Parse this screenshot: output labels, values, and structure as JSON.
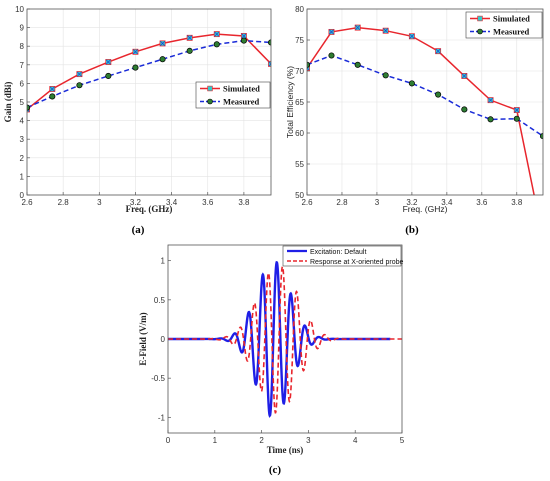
{
  "chart_data": [
    {
      "id": "a",
      "type": "line",
      "panel_label": "(a)",
      "xlabel": "Freq. (GHz)",
      "ylabel": "Gain (dBi)",
      "xlim": [
        2.6,
        3.95
      ],
      "ylim": [
        0,
        10
      ],
      "xticks": [
        2.6,
        2.8,
        3,
        3.2,
        3.4,
        3.6,
        3.8
      ],
      "yticks": [
        0,
        1,
        2,
        3,
        4,
        5,
        6,
        7,
        8,
        9,
        10
      ],
      "grid": true,
      "legend_position": "center-right",
      "series": [
        {
          "name": "Simulated",
          "color": "#e8262d",
          "line": "solid",
          "marker": "square-x",
          "marker_color": "#33cccc",
          "x": [
            2.6,
            2.74,
            2.89,
            3.05,
            3.2,
            3.35,
            3.5,
            3.65,
            3.8,
            3.95
          ],
          "y": [
            4.6,
            5.7,
            6.5,
            7.15,
            7.7,
            8.15,
            8.45,
            8.65,
            8.55,
            7.05
          ]
        },
        {
          "name": "Measured",
          "color": "#1a2bd8",
          "line": "dashed",
          "marker": "circle",
          "marker_color": "#2e7d32",
          "x": [
            2.6,
            2.74,
            2.89,
            3.05,
            3.2,
            3.35,
            3.5,
            3.65,
            3.8,
            3.95
          ],
          "y": [
            4.7,
            5.3,
            5.9,
            6.4,
            6.85,
            7.3,
            7.75,
            8.1,
            8.3,
            8.2
          ]
        }
      ]
    },
    {
      "id": "b",
      "type": "line",
      "panel_label": "(b)",
      "xlabel": "Freq. (GHz)",
      "ylabel": "Total Efficiency (%)",
      "xlim": [
        2.6,
        3.95
      ],
      "ylim": [
        50,
        80
      ],
      "xticks": [
        2.6,
        2.8,
        3,
        3.2,
        3.4,
        3.6,
        3.8
      ],
      "yticks": [
        50,
        55,
        60,
        65,
        70,
        75,
        80
      ],
      "grid": true,
      "legend_position": "top-right",
      "series": [
        {
          "name": "Simulated",
          "color": "#e8262d",
          "line": "solid",
          "marker": "square-x",
          "marker_color": "#33cccc",
          "x": [
            2.6,
            2.74,
            2.89,
            3.05,
            3.2,
            3.35,
            3.5,
            3.65,
            3.8,
            3.95
          ],
          "y": [
            70.5,
            76.3,
            77.0,
            76.5,
            75.6,
            73.2,
            69.2,
            65.3,
            63.7,
            43.0
          ]
        },
        {
          "name": "Measured",
          "color": "#1a2bd8",
          "line": "dashed",
          "marker": "circle",
          "marker_color": "#2e7d32",
          "x": [
            2.6,
            2.74,
            2.89,
            3.05,
            3.2,
            3.35,
            3.5,
            3.65,
            3.8,
            3.95
          ],
          "y": [
            71.0,
            72.5,
            71.0,
            69.3,
            68.0,
            66.2,
            63.8,
            62.2,
            62.3,
            59.5
          ]
        }
      ]
    },
    {
      "id": "c",
      "type": "line",
      "panel_label": "(c)",
      "xlabel": "Time (ns)",
      "ylabel": "E-Field (V/m)",
      "xlim": [
        0,
        5
      ],
      "ylim": [
        -1.2,
        1.2
      ],
      "xticks": [
        0,
        1,
        2,
        3,
        4,
        5
      ],
      "yticks": [
        -1,
        -0.5,
        0,
        0.5,
        1
      ],
      "grid": false,
      "legend_position": "top-right",
      "series": [
        {
          "name": "Excitation: Default",
          "color": "#1f1fe6",
          "line": "solid",
          "waveform": {
            "t_start": 0,
            "t_end": 4.75,
            "center": 2.25,
            "sigma": 0.36,
            "frequency": 3.3,
            "amplitude": 1.0,
            "phase": 0
          }
        },
        {
          "name": "Response at X-oriented probe",
          "color": "#e8262d",
          "line": "dashed",
          "waveform": {
            "t_start": 0,
            "t_end": 5.0,
            "center": 2.35,
            "sigma": 0.42,
            "frequency": 3.3,
            "amplitude": 0.95,
            "phase": -0.45
          }
        }
      ]
    }
  ]
}
